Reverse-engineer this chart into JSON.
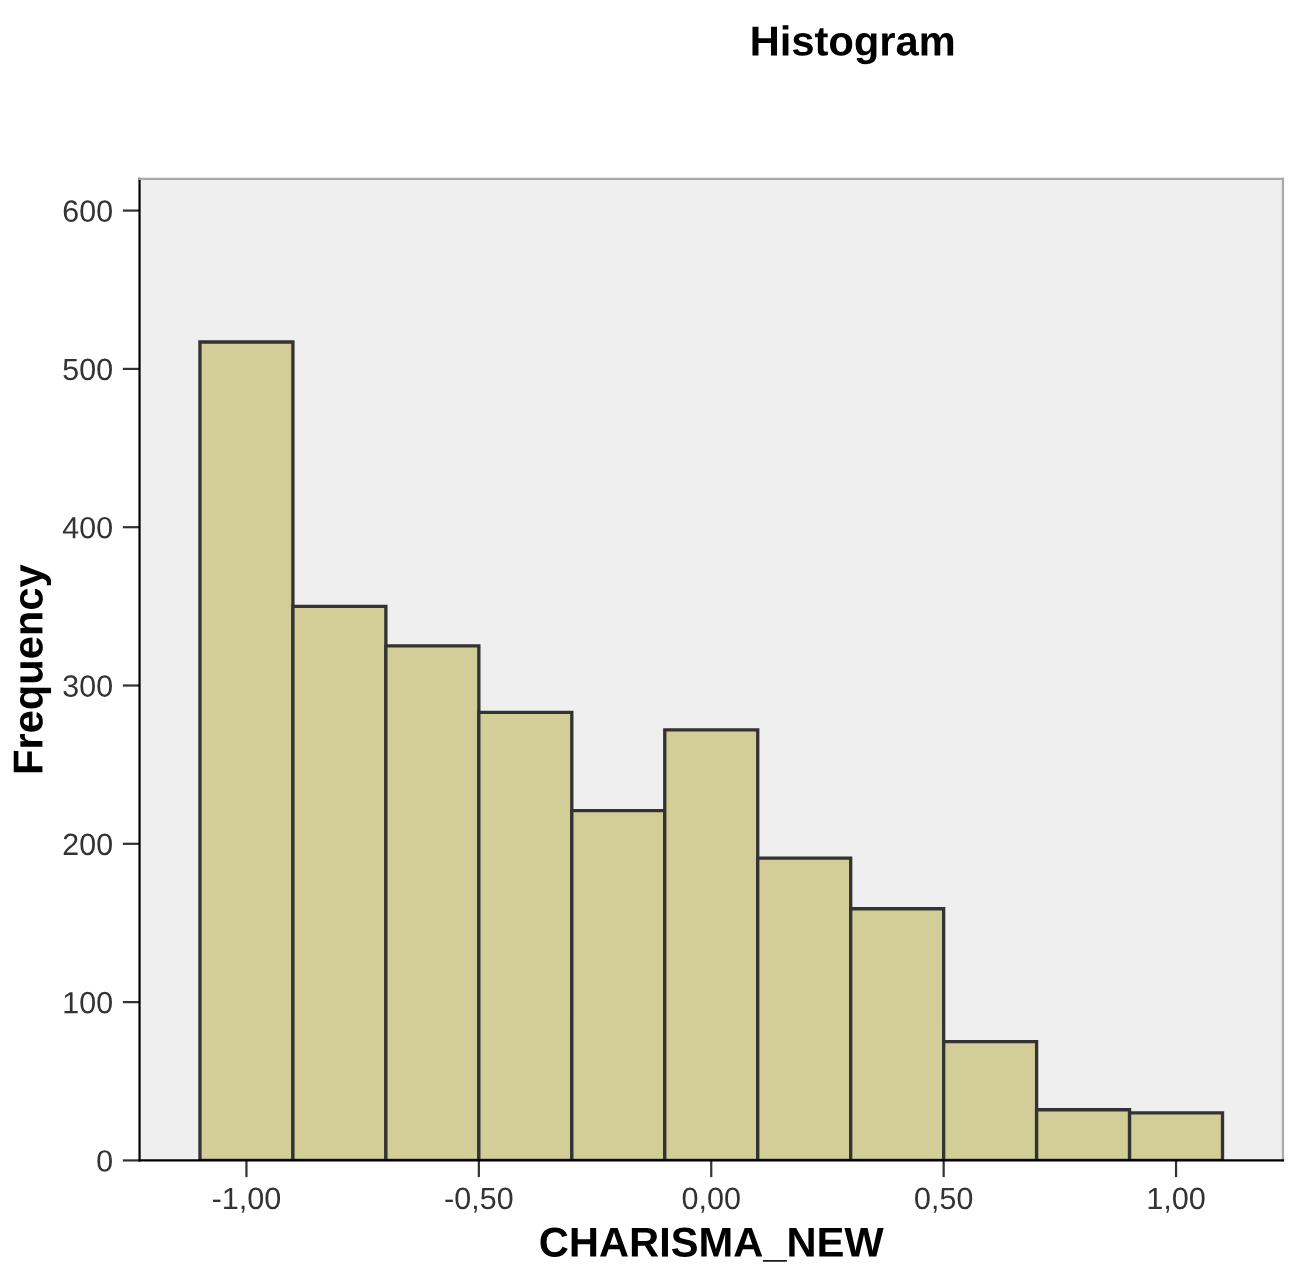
{
  "chart_data": {
    "type": "histogram",
    "title": "Histogram",
    "xlabel": "CHARISMA_NEW",
    "ylabel": "Frequency",
    "bins": [
      -1.1,
      -0.9,
      -0.7,
      -0.5,
      -0.3,
      -0.1,
      0.1,
      0.3,
      0.5,
      0.7,
      0.9,
      1.1
    ],
    "values": [
      517,
      350,
      325,
      283,
      221,
      272,
      191,
      159,
      75,
      32,
      30
    ],
    "color": "#d3ce98",
    "xlim": [
      -1.23,
      1.23
    ],
    "xticks": [
      {
        "value": -1.0,
        "label": "-1,00"
      },
      {
        "value": -0.5,
        "label": "-0,50"
      },
      {
        "value": 0.0,
        "label": "0,00"
      },
      {
        "value": 0.5,
        "label": "0,50"
      },
      {
        "value": 1.0,
        "label": "1,00"
      }
    ],
    "ylim": [
      0,
      620
    ],
    "yticks": [
      0,
      100,
      200,
      300,
      400,
      500,
      600
    ],
    "grid": false
  }
}
